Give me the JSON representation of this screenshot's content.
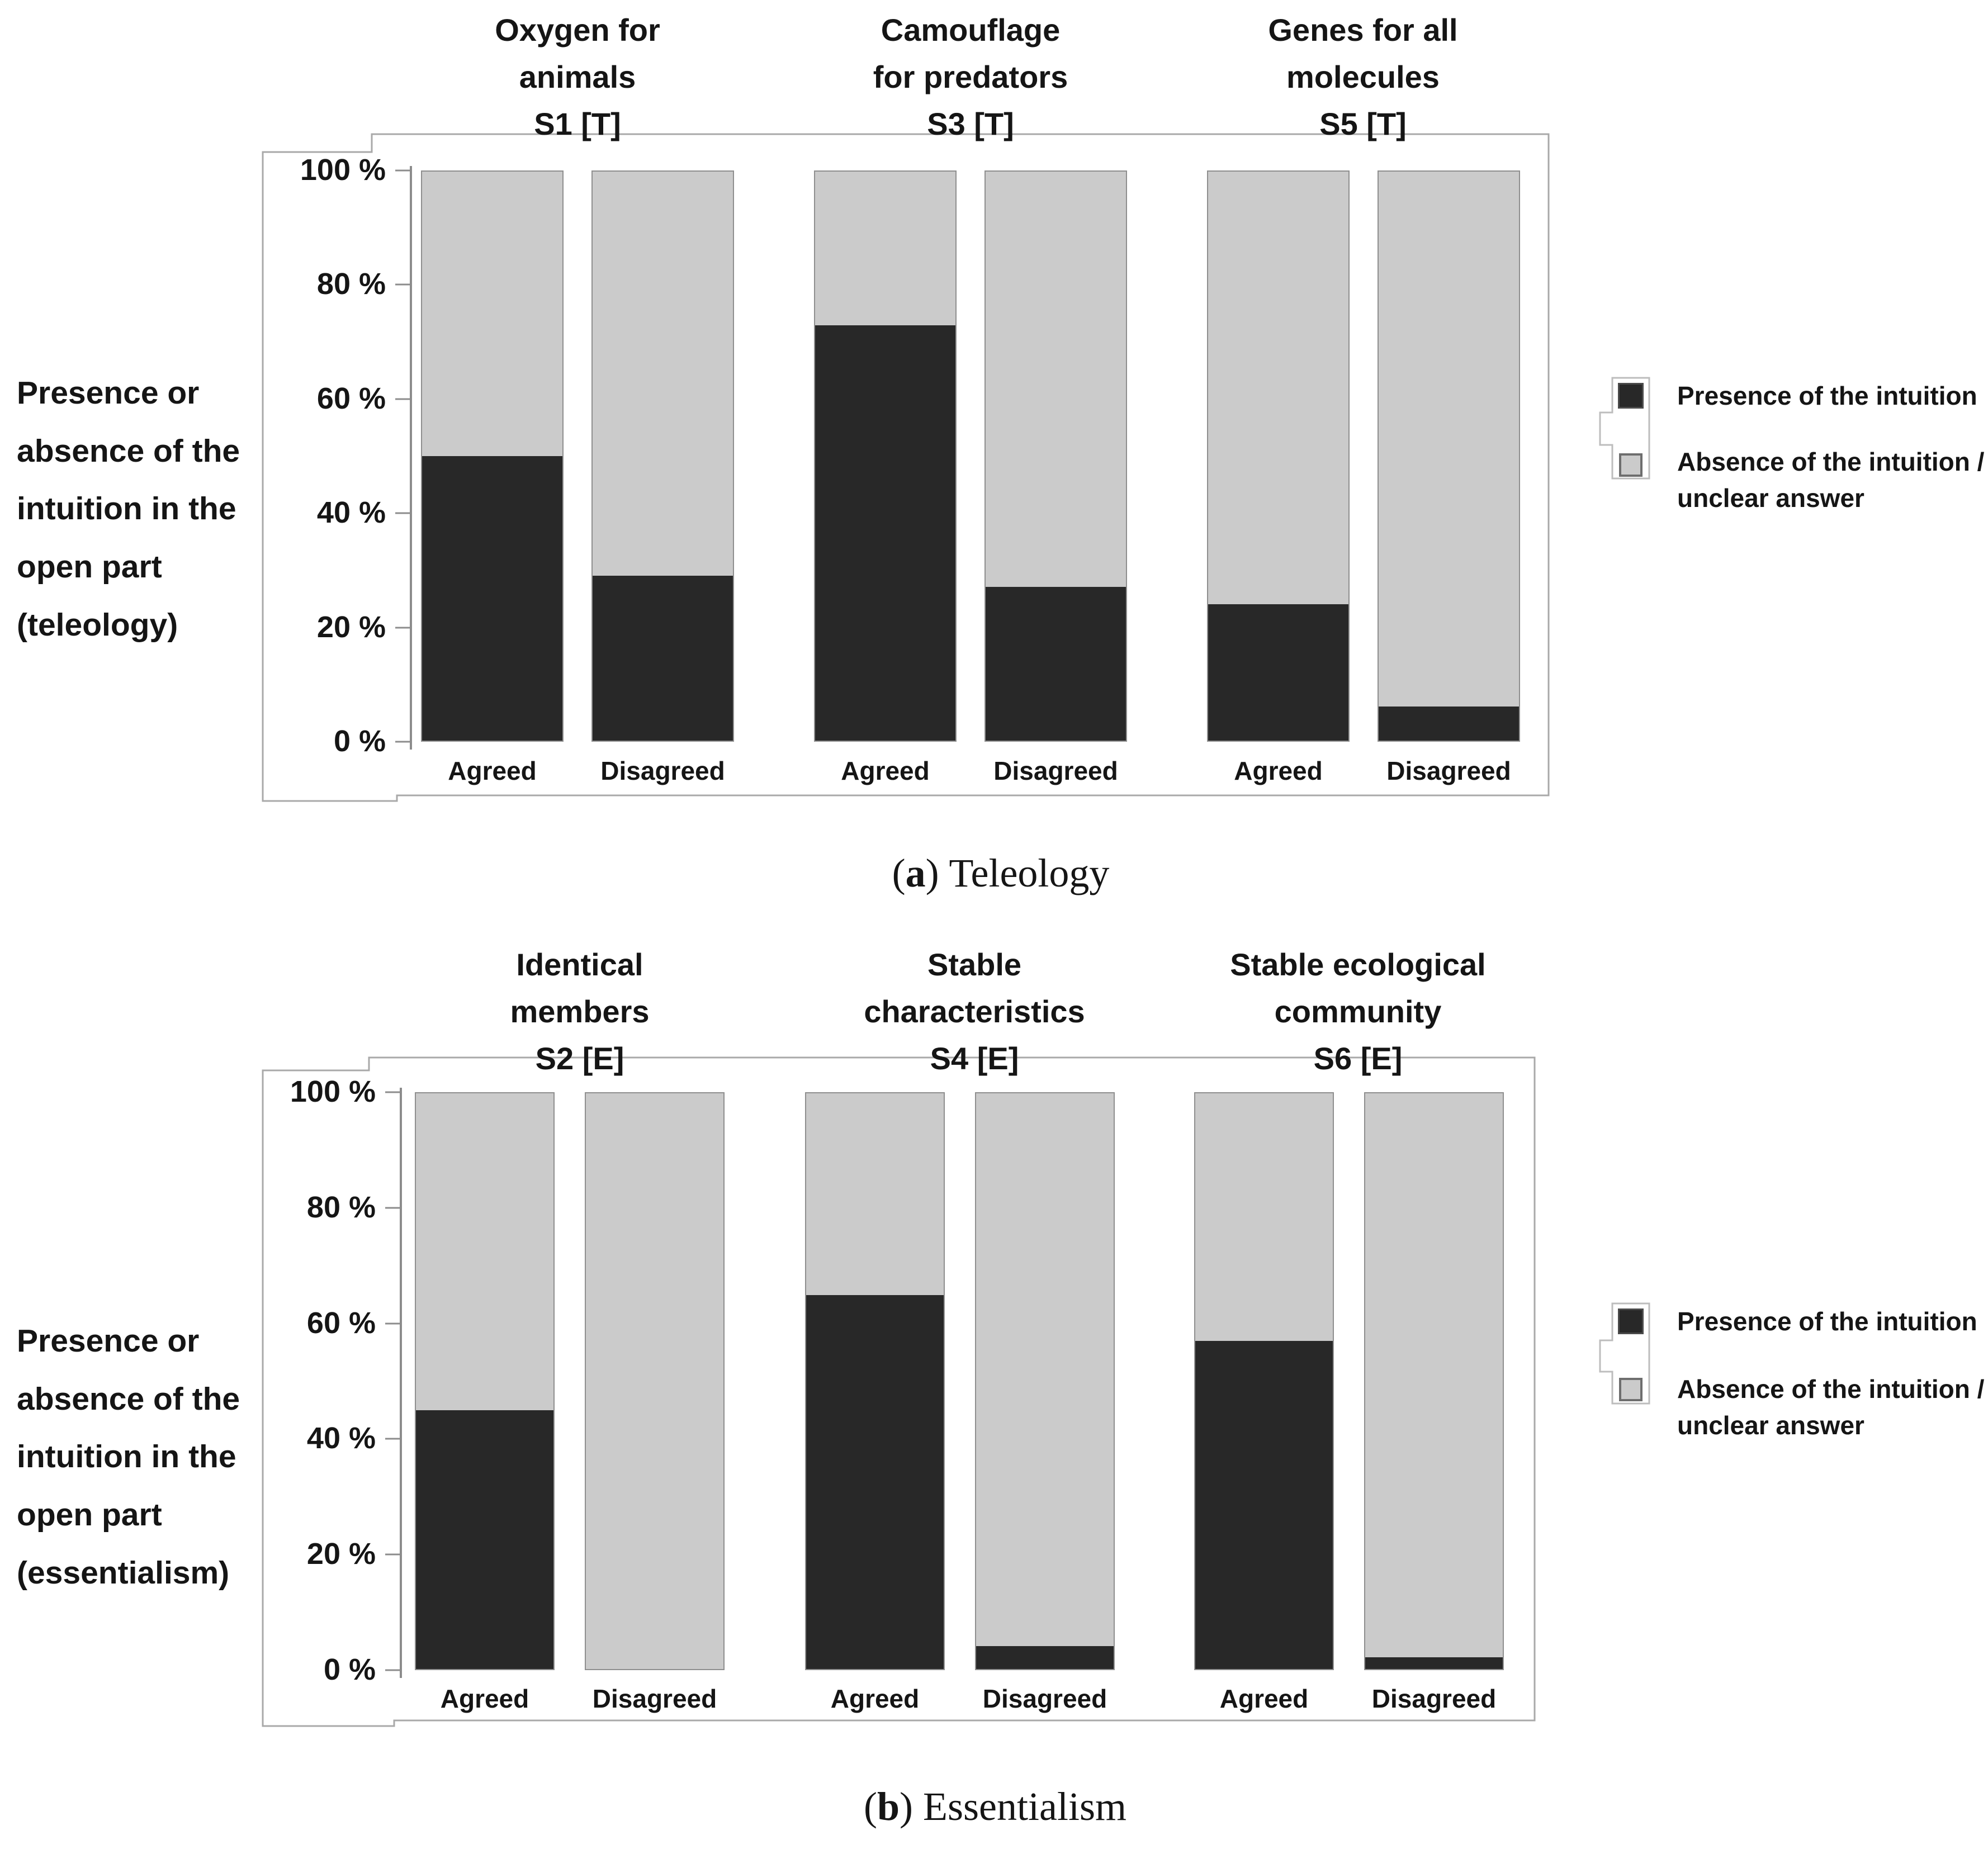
{
  "figure": {
    "legend": {
      "presence_label": "Presence of the intuition",
      "absence_label": "Absence of the intuition /\nunclear answer"
    }
  },
  "chart_data": [
    {
      "type": "bar",
      "stacked": true,
      "panel_letter": "a",
      "caption": {
        "pre": "(",
        "letter": "a",
        "post": ")",
        "label": "Teleology"
      },
      "ylabel": "Presence or\nabsence of the\nintuition in the\nopen part\n(teleology)",
      "ylim": [
        0,
        100
      ],
      "y_ticks": [
        "100 %",
        "80 %",
        "60 %",
        "40 %",
        "20 %",
        "0 %"
      ],
      "grid": false,
      "legend_position": "right",
      "group_titles": [
        "Oxygen for\nanimals\nS1 [T]",
        "Camouflage\nfor predators\nS3 [T]",
        "Genes for all\nmolecules\nS5 [T]"
      ],
      "categories": [
        "Agreed",
        "Disagreed",
        "Agreed",
        "Disagreed",
        "Agreed",
        "Disagreed"
      ],
      "series": [
        {
          "name": "Presence of the intuition",
          "values": [
            50,
            29,
            73,
            27,
            24,
            6
          ]
        },
        {
          "name": "Absence of the intuition / unclear answer",
          "values": [
            50,
            71,
            27,
            73,
            76,
            94
          ]
        }
      ]
    },
    {
      "type": "bar",
      "stacked": true,
      "panel_letter": "b",
      "caption": {
        "pre": "(",
        "letter": "b",
        "post": ")",
        "label": "Essentialism"
      },
      "ylabel": "Presence or\nabsence of the\nintuition in the\nopen part\n(essentialism)",
      "ylim": [
        0,
        100
      ],
      "y_ticks": [
        "100 %",
        "80 %",
        "60 %",
        "40 %",
        "20 %",
        "0 %"
      ],
      "grid": false,
      "legend_position": "right",
      "group_titles": [
        "Identical\nmembers\nS2 [E]",
        "Stable\ncharacteristics\nS4 [E]",
        "Stable ecological\ncommunity\nS6 [E]"
      ],
      "categories": [
        "Agreed",
        "Disagreed",
        "Agreed",
        "Disagreed",
        "Agreed",
        "Disagreed"
      ],
      "series": [
        {
          "name": "Presence of the intuition",
          "values": [
            45,
            0,
            65,
            4,
            57,
            2
          ]
        },
        {
          "name": "Absence of the intuition / unclear answer",
          "values": [
            55,
            100,
            35,
            96,
            43,
            98
          ]
        }
      ]
    }
  ]
}
